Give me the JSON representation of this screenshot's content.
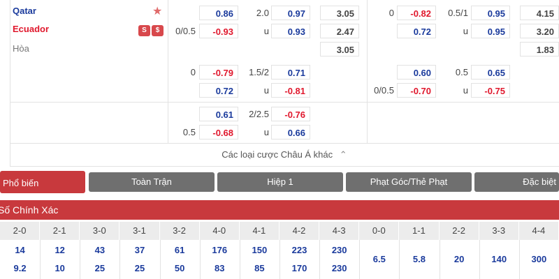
{
  "teams": {
    "home": "Qatar",
    "away": "Ecuador",
    "draw": "Hòa",
    "star_icon": "star-icon",
    "badges": [
      "S",
      "$"
    ]
  },
  "market_a": {
    "rows": [
      {
        "hcap1": "",
        "odd1": "0.86",
        "hcap2": "2.0",
        "odd2": "0.97",
        "odd3": "3.05"
      },
      {
        "hcap1": "0/0.5",
        "odd1": "-0.93",
        "hcap2": "u",
        "odd2": "0.93",
        "odd3": "2.47"
      },
      {
        "odd3": "3.05"
      },
      {
        "hcap1": "0",
        "odd1": "-0.79",
        "hcap2": "1.5/2",
        "odd2": "0.71"
      },
      {
        "odd1": "0.72",
        "hcap2": "u",
        "odd2": "-0.81"
      },
      {
        "odd1": "0.61",
        "hcap2": "2/2.5",
        "odd2": "-0.76"
      },
      {
        "hcap1": "0.5",
        "odd1": "-0.68",
        "hcap2": "u",
        "odd2": "0.66"
      }
    ]
  },
  "market_b": {
    "rows": [
      {
        "hcap1": "0",
        "odd1": "-0.82",
        "hcap2": "0.5/1",
        "odd2": "0.95",
        "odd3": "4.15"
      },
      {
        "odd1": "0.72",
        "hcap2": "u",
        "odd2": "0.95",
        "odd3": "3.20"
      },
      {
        "odd3": "1.83"
      },
      {
        "odd1": "0.60",
        "hcap2": "0.5",
        "odd2": "0.65"
      },
      {
        "hcap1": "0/0.5",
        "odd1": "-0.70",
        "hcap2": "u",
        "odd2": "-0.75"
      }
    ]
  },
  "more_link": "Các loại cược Châu Á khác",
  "tabs": [
    "Phổ biến",
    "Toàn Trận",
    "Hiệp 1",
    "Phạt Góc/Thẻ Phạt",
    "Đặc biệt"
  ],
  "section_title": "Số Chính Xác",
  "scores": {
    "headers": [
      "2-0",
      "2-1",
      "3-0",
      "3-1",
      "3-2",
      "4-0",
      "4-1",
      "4-2",
      "4-3",
      "0-0",
      "1-1",
      "2-2",
      "3-3",
      "4-4"
    ],
    "row1": [
      "14",
      "12",
      "43",
      "37",
      "61",
      "176",
      "150",
      "223",
      "230"
    ],
    "row2": [
      "9.2",
      "10",
      "25",
      "25",
      "50",
      "83",
      "85",
      "170",
      "230"
    ],
    "draws": [
      "6.5",
      "5.8",
      "20",
      "140",
      "300"
    ]
  },
  "colors": {
    "accent": "#c8393d",
    "tab_gray": "#6f6f6f",
    "blue": "#1a3a9c",
    "red": "#e0182d"
  }
}
